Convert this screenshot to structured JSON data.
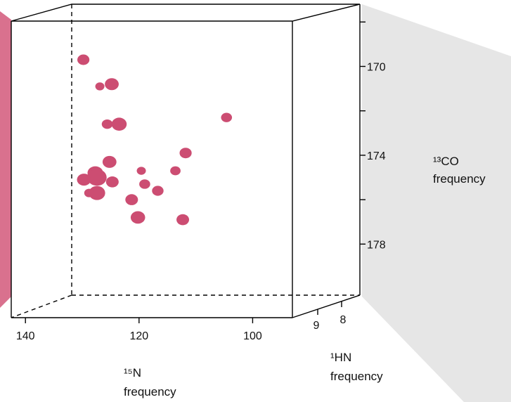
{
  "colors": {
    "peak": "#cc4d72",
    "projection_plane": "#e6e6e6",
    "side_strip": "#d9718e"
  },
  "chart_data": {
    "type": "scatter",
    "title": "",
    "x_axis": {
      "label": "¹⁵N frequency",
      "label_lines": [
        "¹⁵N",
        "frequency"
      ],
      "ticks": [
        140,
        120,
        100
      ],
      "range": [
        142.5,
        93
      ],
      "reversed": true
    },
    "y_axis": {
      "label": "¹³CO frequency",
      "label_lines": [
        "¹³CO",
        "frequency"
      ],
      "ticks": [
        170,
        174,
        178
      ],
      "minor_ticks": [
        168,
        172,
        176
      ],
      "range": [
        167.2,
        180.3
      ],
      "reversed": true
    },
    "z_axis": {
      "label": "¹HN frequency",
      "label_lines": [
        "¹HN",
        "frequency"
      ],
      "ticks": [
        9,
        8
      ]
    },
    "peaks": [
      {
        "n15": 129.8,
        "co": 169.7,
        "w": 1.1
      },
      {
        "n15": 126.9,
        "co": 170.9,
        "w": 0.6
      },
      {
        "n15": 124.8,
        "co": 170.8,
        "w": 1.4
      },
      {
        "n15": 123.5,
        "co": 172.6,
        "w": 1.6
      },
      {
        "n15": 125.6,
        "co": 172.6,
        "w": 0.9
      },
      {
        "n15": 104.6,
        "co": 172.3,
        "w": 0.9
      },
      {
        "n15": 111.8,
        "co": 173.9,
        "w": 1.1
      },
      {
        "n15": 125.2,
        "co": 174.3,
        "w": 1.4
      },
      {
        "n15": 127.7,
        "co": 174.8,
        "w": 1.7
      },
      {
        "n15": 127.4,
        "co": 175.0,
        "w": 2.3
      },
      {
        "n15": 129.7,
        "co": 175.1,
        "w": 1.4
      },
      {
        "n15": 124.7,
        "co": 175.2,
        "w": 1.2
      },
      {
        "n15": 119.6,
        "co": 174.7,
        "w": 0.6
      },
      {
        "n15": 113.6,
        "co": 174.7,
        "w": 0.8
      },
      {
        "n15": 119.0,
        "co": 175.3,
        "w": 0.9
      },
      {
        "n15": 116.7,
        "co": 175.6,
        "w": 1.0
      },
      {
        "n15": 127.4,
        "co": 175.7,
        "w": 1.8
      },
      {
        "n15": 128.8,
        "co": 175.7,
        "w": 0.7
      },
      {
        "n15": 121.3,
        "co": 176.0,
        "w": 1.2
      },
      {
        "n15": 120.2,
        "co": 176.8,
        "w": 1.5
      },
      {
        "n15": 112.3,
        "co": 176.9,
        "w": 1.2
      }
    ]
  }
}
